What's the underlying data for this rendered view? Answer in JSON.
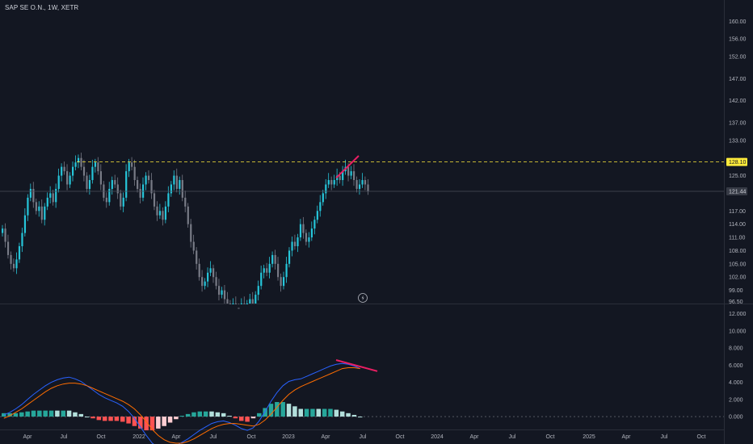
{
  "header": {
    "title": "SAP SE O.N., 1W, XETR"
  },
  "colors": {
    "background": "#131722",
    "up": "#26c6da",
    "down": "#787b86",
    "macd": "#2962ff",
    "signal": "#ff6d00",
    "hist_pos_strong": "#26a69a",
    "hist_pos_weak": "#b2dfdb",
    "hist_neg_strong": "#ff5252",
    "hist_neg_weak": "#ffcdd2",
    "resistance": "#ffeb3b",
    "trendline": "#e91e63",
    "grid": "#2a2e39"
  },
  "chart_data": [
    {
      "type": "candlestick",
      "title": "SAP SE O.N., 1W, XETR",
      "y_ticks": [
        "160.00",
        "156.00",
        "152.00",
        "147.00",
        "142.00",
        "137.00",
        "133.00",
        "128.10",
        "125.00",
        "121.44",
        "117.00",
        "114.00",
        "111.00",
        "108.00",
        "105.00",
        "102.00",
        "99.00",
        "96.50"
      ],
      "x_ticks": [
        "Apr",
        "Jul",
        "Oct",
        "2022",
        "Apr",
        "Jul",
        "Oct",
        "2023",
        "Apr",
        "Jul",
        "Oct",
        "2024",
        "Apr",
        "Jul",
        "Oct",
        "2025",
        "Apr",
        "Jul",
        "Oct"
      ],
      "resistance_level": 128.1,
      "current_price": 121.44,
      "ylim": [
        96.0,
        163.0
      ],
      "closes": [
        113,
        110,
        107,
        105,
        104,
        106,
        109,
        112,
        116,
        120,
        122,
        119,
        117,
        118,
        115,
        118,
        120,
        121,
        119,
        122,
        125,
        127,
        126,
        123,
        125,
        127,
        128,
        129,
        127,
        125,
        122,
        124,
        127,
        128,
        126,
        123,
        120,
        119,
        122,
        124,
        123,
        121,
        118,
        120,
        126,
        128,
        127,
        124,
        122,
        120,
        123,
        125,
        124,
        121,
        118,
        116,
        117,
        115,
        118,
        121,
        123,
        125,
        122,
        124,
        120,
        118,
        114,
        110,
        108,
        105,
        102,
        100,
        101,
        103,
        104,
        102,
        100,
        98,
        99,
        97,
        96,
        95,
        96,
        95,
        94,
        96,
        95,
        96,
        97,
        95,
        98,
        100,
        103,
        104,
        103,
        105,
        107,
        105,
        102,
        100,
        102,
        105,
        108,
        110,
        109,
        111,
        114,
        112,
        110,
        111,
        113,
        115,
        117,
        119,
        121,
        123,
        124,
        123,
        124,
        125,
        124,
        126,
        127,
        125,
        126,
        124,
        122,
        123,
        124,
        123,
        121.44
      ],
      "series": [
        {
          "name": "MACD",
          "values": [
            0.2,
            0.5,
            0.9,
            1.4,
            2.0,
            2.6,
            3.1,
            3.6,
            4.0,
            4.3,
            4.5,
            4.6,
            4.4,
            4.1,
            3.6,
            3.1,
            2.6,
            2.2,
            1.9,
            1.6,
            1.2,
            0.6,
            -0.2,
            -1.2,
            -2.2,
            -3.1,
            -3.6,
            -3.8,
            -3.7,
            -3.4,
            -3.0,
            -2.6,
            -2.1,
            -1.6,
            -1.2,
            -0.8,
            -0.6,
            -0.5,
            -0.7,
            -1.0,
            -1.4,
            -1.6,
            -1.3,
            -0.5,
            0.6,
            1.8,
            2.8,
            3.6,
            4.1,
            4.3,
            4.4,
            4.7,
            5.0,
            5.3,
            5.6,
            5.9,
            6.1,
            6.2,
            6.1,
            5.9,
            5.6
          ]
        },
        {
          "name": "Signal",
          "values": [
            -0.2,
            0.1,
            0.5,
            0.9,
            1.4,
            1.9,
            2.4,
            2.9,
            3.3,
            3.6,
            3.8,
            3.9,
            3.9,
            3.8,
            3.6,
            3.3,
            3.0,
            2.7,
            2.4,
            2.1,
            1.8,
            1.4,
            0.9,
            0.2,
            -0.6,
            -1.5,
            -2.2,
            -2.7,
            -3.0,
            -3.1,
            -3.1,
            -2.9,
            -2.6,
            -2.2,
            -1.8,
            -1.4,
            -1.1,
            -0.9,
            -0.8,
            -0.8,
            -0.9,
            -1.0,
            -1.1,
            -0.9,
            -0.4,
            0.3,
            1.1,
            1.9,
            2.6,
            3.1,
            3.5,
            3.8,
            4.1,
            4.4,
            4.7,
            5.0,
            5.3,
            5.6,
            5.7,
            5.7,
            5.6
          ]
        }
      ]
    },
    {
      "type": "macd",
      "y_ticks": [
        "12.000",
        "10.000",
        "8.000",
        "6.000",
        "4.000",
        "2.000",
        "0.000"
      ],
      "ylim": [
        -1.5,
        13.0
      ]
    }
  ]
}
